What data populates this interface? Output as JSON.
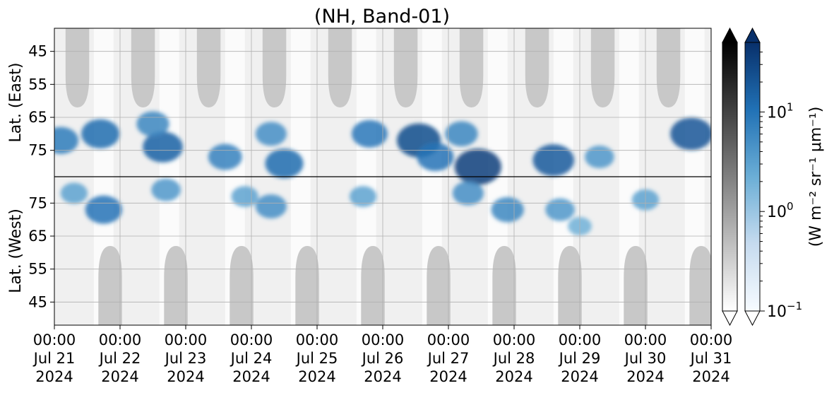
{
  "chart_data": {
    "type": "heatmap",
    "title": "(NH, Band-01)",
    "x_ticks": [
      {
        "time": "00:00",
        "date": "Jul 21",
        "year": "2024"
      },
      {
        "time": "00:00",
        "date": "Jul 22",
        "year": "2024"
      },
      {
        "time": "00:00",
        "date": "Jul 23",
        "year": "2024"
      },
      {
        "time": "00:00",
        "date": "Jul 24",
        "year": "2024"
      },
      {
        "time": "00:00",
        "date": "Jul 25",
        "year": "2024"
      },
      {
        "time": "00:00",
        "date": "Jul 26",
        "year": "2024"
      },
      {
        "time": "00:00",
        "date": "Jul 27",
        "year": "2024"
      },
      {
        "time": "00:00",
        "date": "Jul 28",
        "year": "2024"
      },
      {
        "time": "00:00",
        "date": "Jul 29",
        "year": "2024"
      },
      {
        "time": "00:00",
        "date": "Jul 30",
        "year": "2024"
      },
      {
        "time": "00:00",
        "date": "Jul 31",
        "year": "2024"
      }
    ],
    "x_range": [
      "2024-07-21T00:00",
      "2024-07-31T00:00"
    ],
    "east_panel": {
      "ylabel": "Lat. (East)",
      "y_ticks": [
        45,
        55,
        65,
        75
      ],
      "ylim": [
        38,
        83
      ]
    },
    "west_panel": {
      "ylabel": "Lat. (West)",
      "y_ticks": [
        75,
        65,
        55,
        45
      ],
      "ylim": [
        83,
        38
      ]
    },
    "colorbars": [
      {
        "name": "gray",
        "ticks": [],
        "extend": "both"
      },
      {
        "name": "blues",
        "scale": "log",
        "range": [
          0.1,
          50
        ],
        "ticks": [
          {
            "base": "10",
            "exp": "1",
            "value": 10
          },
          {
            "base": "10",
            "exp": "0",
            "value": 1
          },
          {
            "base": "10",
            "exp": "−1",
            "value": 0.1
          }
        ],
        "extend": "both"
      }
    ],
    "colorbar_label": "(W m⁻² sr⁻¹ μm⁻¹)",
    "grid": true,
    "colors": {
      "low": "#f7fbff",
      "mid": "#6baed6",
      "high": "#08306b",
      "nodata": "#c8c8c8",
      "background": "#f0f0f0"
    },
    "nodata_east_day_centers": [
      0.35,
      1.35,
      2.35,
      3.35,
      4.35,
      5.35,
      6.35,
      7.35,
      8.35,
      9.35
    ],
    "nodata_west_day_centers": [
      0.85,
      1.85,
      2.85,
      3.85,
      4.85,
      5.85,
      6.85,
      7.85,
      8.85,
      9.85
    ],
    "nodata_edge_latitude": 62,
    "hotspots": [
      {
        "day": 0.1,
        "lat": 72,
        "hemi": "east",
        "value": 8
      },
      {
        "day": 0.7,
        "lat": 70,
        "hemi": "east",
        "value": 12
      },
      {
        "day": 1.65,
        "lat": 74,
        "hemi": "east",
        "value": 15
      },
      {
        "day": 1.5,
        "lat": 67,
        "hemi": "east",
        "value": 6
      },
      {
        "day": 2.6,
        "lat": 77,
        "hemi": "east",
        "value": 7
      },
      {
        "day": 3.5,
        "lat": 79,
        "hemi": "east",
        "value": 12
      },
      {
        "day": 3.3,
        "lat": 70,
        "hemi": "east",
        "value": 5
      },
      {
        "day": 4.8,
        "lat": 70,
        "hemi": "east",
        "value": 9
      },
      {
        "day": 5.55,
        "lat": 72,
        "hemi": "east",
        "value": 25
      },
      {
        "day": 5.8,
        "lat": 77,
        "hemi": "east",
        "value": 10
      },
      {
        "day": 6.45,
        "lat": 80,
        "hemi": "east",
        "value": 35
      },
      {
        "day": 6.2,
        "lat": 70,
        "hemi": "east",
        "value": 6
      },
      {
        "day": 7.6,
        "lat": 78,
        "hemi": "east",
        "value": 18
      },
      {
        "day": 8.3,
        "lat": 77,
        "hemi": "east",
        "value": 4
      },
      {
        "day": 9.7,
        "lat": 70,
        "hemi": "east",
        "value": 20
      },
      {
        "day": 0.3,
        "lat": 78,
        "hemi": "west",
        "value": 3
      },
      {
        "day": 0.75,
        "lat": 73,
        "hemi": "west",
        "value": 10
      },
      {
        "day": 1.7,
        "lat": 79,
        "hemi": "west",
        "value": 4
      },
      {
        "day": 2.9,
        "lat": 77,
        "hemi": "west",
        "value": 3
      },
      {
        "day": 3.3,
        "lat": 74,
        "hemi": "west",
        "value": 5
      },
      {
        "day": 4.7,
        "lat": 77,
        "hemi": "west",
        "value": 3
      },
      {
        "day": 6.3,
        "lat": 78,
        "hemi": "west",
        "value": 5
      },
      {
        "day": 6.9,
        "lat": 73,
        "hemi": "west",
        "value": 6
      },
      {
        "day": 7.7,
        "lat": 73,
        "hemi": "west",
        "value": 4
      },
      {
        "day": 8.0,
        "lat": 68,
        "hemi": "west",
        "value": 2
      },
      {
        "day": 9.0,
        "lat": 76,
        "hemi": "west",
        "value": 3
      }
    ]
  }
}
